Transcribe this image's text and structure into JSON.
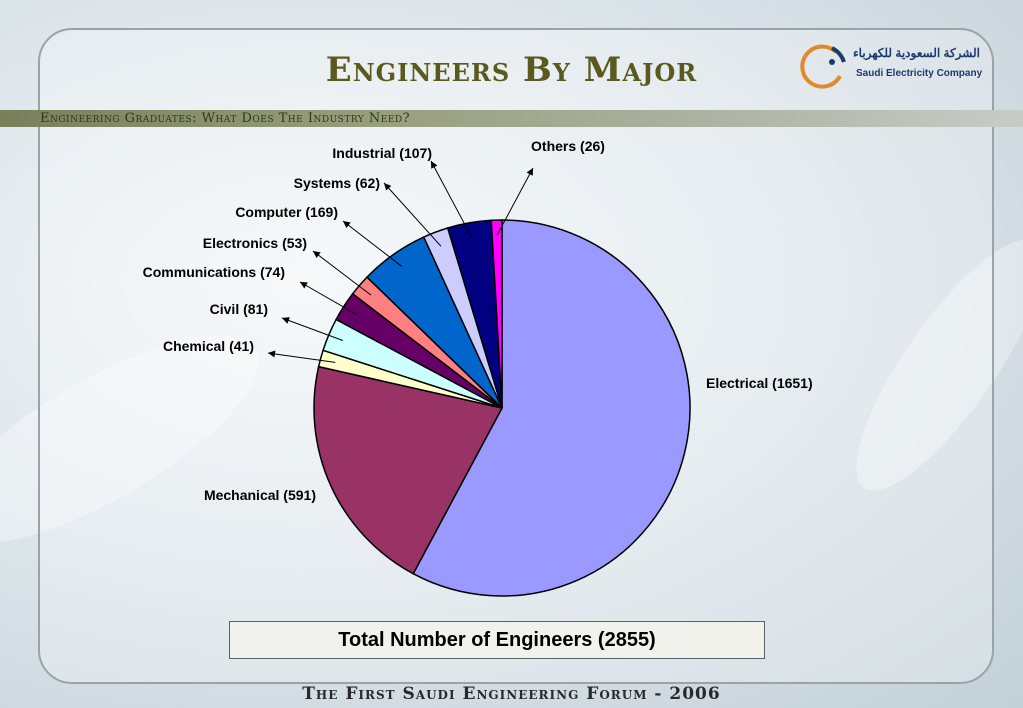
{
  "header": {
    "title": "Engineers By Major",
    "subtitle": "Engineering Graduates: What Does The Industry Need?"
  },
  "logo": {
    "arabic": "الشركة السعودية للكهرباء",
    "english": "Saudi Electricity Company",
    "accent_color": "#1b3a6e",
    "ring_color": "#e08a2c"
  },
  "chart_data": {
    "type": "pie",
    "title": "",
    "slices": [
      {
        "name": "Electrical",
        "value": 1651,
        "label": "Electrical (1651)",
        "color": "#9999ff"
      },
      {
        "name": "Mechanical",
        "value": 591,
        "label": "Mechanical  (591)",
        "color": "#993366"
      },
      {
        "name": "Chemical",
        "value": 41,
        "label": "Chemical (41)",
        "color": "#ffffcc"
      },
      {
        "name": "Civil",
        "value": 81,
        "label": "Civil (81)",
        "color": "#ccffff"
      },
      {
        "name": "Communications",
        "value": 74,
        "label": "Communications (74)",
        "color": "#660066"
      },
      {
        "name": "Electronics",
        "value": 53,
        "label": "Electronics (53)",
        "color": "#ff8080"
      },
      {
        "name": "Computer",
        "value": 169,
        "label": "Computer (169)",
        "color": "#0066cc"
      },
      {
        "name": "Systems",
        "value": 62,
        "label": "Systems (62)",
        "color": "#ccccff"
      },
      {
        "name": "Industrial",
        "value": 107,
        "label": "Industrial (107)",
        "color": "#000080"
      },
      {
        "name": "Others",
        "value": 26,
        "label": "Others (26)",
        "color": "#ff00ff"
      }
    ],
    "total": 2855,
    "start": "top (12 o'clock)",
    "direction": "clockwise",
    "legend": "none (callout labels)"
  },
  "summary": {
    "total_label": "Total Number of Engineers (2855)"
  },
  "footer": {
    "text": "The First Saudi Engineering Forum - 2006"
  }
}
